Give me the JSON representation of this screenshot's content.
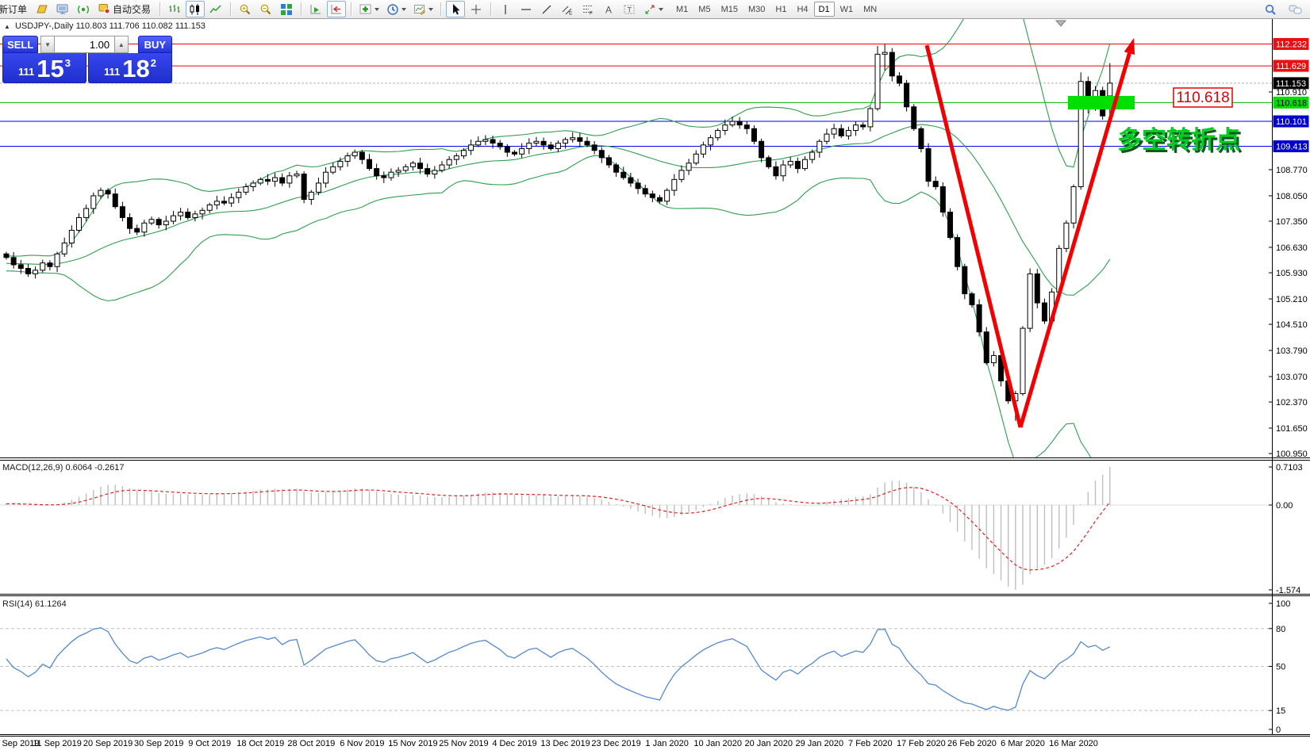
{
  "toolbar": {
    "new_order": "新订单",
    "auto_trade": "自动交易",
    "timeframes": [
      "M1",
      "M5",
      "M15",
      "M30",
      "H1",
      "H4",
      "D1",
      "W1",
      "MN"
    ],
    "selected_timeframe": "D1",
    "glyphs": {
      "channel": "E",
      "fib": "F",
      "text_tool": "A",
      "label_tool": "T"
    }
  },
  "chart": {
    "marker": "▲",
    "symbol_period": "USDJPY-,Daily",
    "ohlc_values": "110.803 111.706 110.082 111.153"
  },
  "trade_panel": {
    "sell_label": "SELL",
    "buy_label": "BUY",
    "volume": "1.00",
    "spin_down_glyph": "▼",
    "spin_up_glyph": "▲",
    "sell_price": {
      "prefix": "111",
      "big": "15",
      "sup": "3"
    },
    "buy_price": {
      "prefix": "111",
      "big": "18",
      "sup": "2"
    }
  },
  "annotations": {
    "level_label": "110.618",
    "turning_point_text": "多空转折点",
    "arrow_color": "#f00000",
    "highlight_color": "#00e000",
    "text_color": "#00cc22"
  },
  "macd_panel": {
    "label": "MACD(12,26,9) 0.6064 -0.2617"
  },
  "rsi_panel": {
    "label": "RSI(14) 61.1264"
  },
  "price_axis": {
    "ticks": [
      {
        "label": "110.910",
        "value": 110.91
      },
      {
        "label": "108.770",
        "value": 108.77
      },
      {
        "label": "108.050",
        "value": 108.05
      },
      {
        "label": "107.350",
        "value": 107.35
      },
      {
        "label": "106.630",
        "value": 106.63
      },
      {
        "label": "105.930",
        "value": 105.93
      },
      {
        "label": "105.210",
        "value": 105.21
      },
      {
        "label": "104.510",
        "value": 104.51
      },
      {
        "label": "103.790",
        "value": 103.79
      },
      {
        "label": "103.070",
        "value": 103.07
      },
      {
        "label": "102.370",
        "value": 102.37
      },
      {
        "label": "101.650",
        "value": 101.65
      },
      {
        "label": "100.950",
        "value": 100.95
      }
    ],
    "tags": [
      {
        "label": "112.232",
        "value": 112.232,
        "bg": "#e81010",
        "fg": "#ffffff"
      },
      {
        "label": "111.629",
        "value": 111.629,
        "bg": "#e81010",
        "fg": "#ffffff"
      },
      {
        "label": "111.153",
        "value": 111.153,
        "bg": "#000000",
        "fg": "#ffffff"
      },
      {
        "label": "110.618",
        "value": 110.618,
        "bg": "#00dd00",
        "fg": "#000000"
      },
      {
        "label": "110.101",
        "value": 110.101,
        "bg": "#0000cd",
        "fg": "#ffffff"
      },
      {
        "label": "109.413",
        "value": 109.413,
        "bg": "#0000cd",
        "fg": "#ffffff"
      }
    ]
  },
  "chart_data": {
    "type": "candlestick",
    "symbol": "USDJPY-",
    "timeframe": "Daily",
    "title_ohlc": {
      "open": "110.803",
      "high": "111.706",
      "low": "110.082",
      "close": "111.153"
    },
    "ylim": [
      100.82,
      112.85
    ],
    "first_open": 106.45,
    "closes": [
      106.35,
      106.15,
      106.05,
      105.9,
      106.0,
      106.2,
      106.1,
      106.45,
      106.75,
      107.1,
      107.45,
      107.7,
      108.05,
      108.2,
      108.1,
      107.75,
      107.45,
      107.15,
      107.05,
      107.3,
      107.4,
      107.25,
      107.35,
      107.5,
      107.6,
      107.45,
      107.55,
      107.65,
      107.8,
      107.9,
      107.85,
      108.0,
      108.15,
      108.3,
      108.4,
      108.5,
      108.45,
      108.55,
      108.4,
      108.6,
      108.65,
      107.95,
      108.15,
      108.4,
      108.7,
      108.85,
      109.0,
      109.15,
      109.25,
      109.05,
      108.8,
      108.6,
      108.55,
      108.7,
      108.75,
      108.85,
      108.95,
      108.8,
      108.65,
      108.75,
      108.9,
      109.05,
      109.15,
      109.3,
      109.45,
      109.55,
      109.6,
      109.5,
      109.4,
      109.25,
      109.2,
      109.35,
      109.5,
      109.55,
      109.45,
      109.35,
      109.5,
      109.6,
      109.65,
      109.55,
      109.45,
      109.3,
      109.1,
      108.9,
      108.7,
      108.55,
      108.4,
      108.25,
      108.1,
      108.0,
      107.9,
      108.2,
      108.5,
      108.75,
      108.95,
      109.2,
      109.45,
      109.65,
      109.85,
      110.0,
      110.1,
      110.0,
      109.9,
      109.55,
      109.1,
      108.85,
      108.6,
      108.9,
      109.0,
      108.8,
      109.05,
      109.25,
      109.55,
      109.75,
      109.9,
      109.7,
      109.85,
      110.0,
      109.95,
      110.45,
      111.95,
      112.0,
      111.35,
      111.15,
      110.5,
      109.9,
      109.35,
      108.45,
      108.3,
      107.6,
      106.9,
      106.1,
      105.35,
      105.05,
      104.3,
      103.45,
      103.65,
      102.95,
      102.4,
      102.6,
      104.4,
      105.9,
      105.1,
      104.6,
      105.4,
      106.6,
      107.3,
      108.3,
      111.2,
      110.45,
      110.95,
      110.25,
      111.15
    ],
    "overrides": {
      "120": {
        "o": 110.45,
        "h": 112.18
      },
      "121": {
        "h": 112.232,
        "l": 111.5
      },
      "139": {
        "l": 101.85
      },
      "148": {
        "h": 111.45
      },
      "152": {
        "o": 110.8,
        "h": 111.706,
        "l": 110.082,
        "c": 111.153
      }
    },
    "pre_closes": [
      106.1,
      106.2,
      106.0,
      105.9,
      106.05,
      106.2,
      106.1,
      105.95,
      106.1,
      106.3,
      106.2,
      106.05,
      105.95,
      106.1,
      106.25,
      106.15,
      106.0,
      106.1,
      106.3,
      106.2,
      106.05,
      106.0,
      106.2,
      106.35,
      106.2,
      106.1,
      106.15,
      106.3,
      106.2,
      106.1,
      106.2,
      106.25,
      106.3
    ],
    "indicators": [
      {
        "name": "Bollinger Bands",
        "period": 20,
        "deviation": 2,
        "color": "#2f9e4f"
      },
      {
        "name": "MACD",
        "params": [
          12,
          26,
          9
        ],
        "main_value": 0.6064,
        "signal_value": -0.2617,
        "scale_ticks": [
          {
            "label": "0.7103",
            "value": 0.7103
          },
          {
            "label": "0.00",
            "value": 0
          },
          {
            "label": "-1.574",
            "value": -1.574
          }
        ]
      },
      {
        "name": "RSI",
        "period": 14,
        "value": 61.1264,
        "scale_ticks": [
          {
            "label": "100",
            "value": 100
          },
          {
            "label": "80",
            "value": 80
          },
          {
            "label": "50",
            "value": 50
          },
          {
            "label": "15",
            "value": 15
          },
          {
            "label": "0",
            "value": 0
          }
        ],
        "level_lines": [
          80,
          50,
          15
        ]
      }
    ],
    "level_lines": [
      {
        "price": 112.232,
        "color": "#f00000"
      },
      {
        "price": 111.629,
        "color": "#f00000"
      },
      {
        "price": 110.618,
        "color": "#00b400"
      },
      {
        "price": 110.101,
        "color": "#0000e8"
      },
      {
        "price": 109.413,
        "color": "#0000e8"
      }
    ],
    "current_price": 111.153,
    "x_axis_dates": [
      "Sep 2019",
      "11 Sep 2019",
      "20 Sep 2019",
      "30 Sep 2019",
      "9 Oct 2019",
      "18 Oct 2019",
      "28 Oct 2019",
      "6 Nov 2019",
      "15 Nov 2019",
      "25 Nov 2019",
      "4 Dec 2019",
      "13 Dec 2019",
      "23 Dec 2019",
      "1 Jan 2020",
      "10 Jan 2020",
      "20 Jan 2020",
      "29 Jan 2020",
      "7 Feb 2020",
      "17 Feb 2020",
      "26 Feb 2020",
      "6 Mar 2020",
      "16 Mar 2020"
    ]
  }
}
